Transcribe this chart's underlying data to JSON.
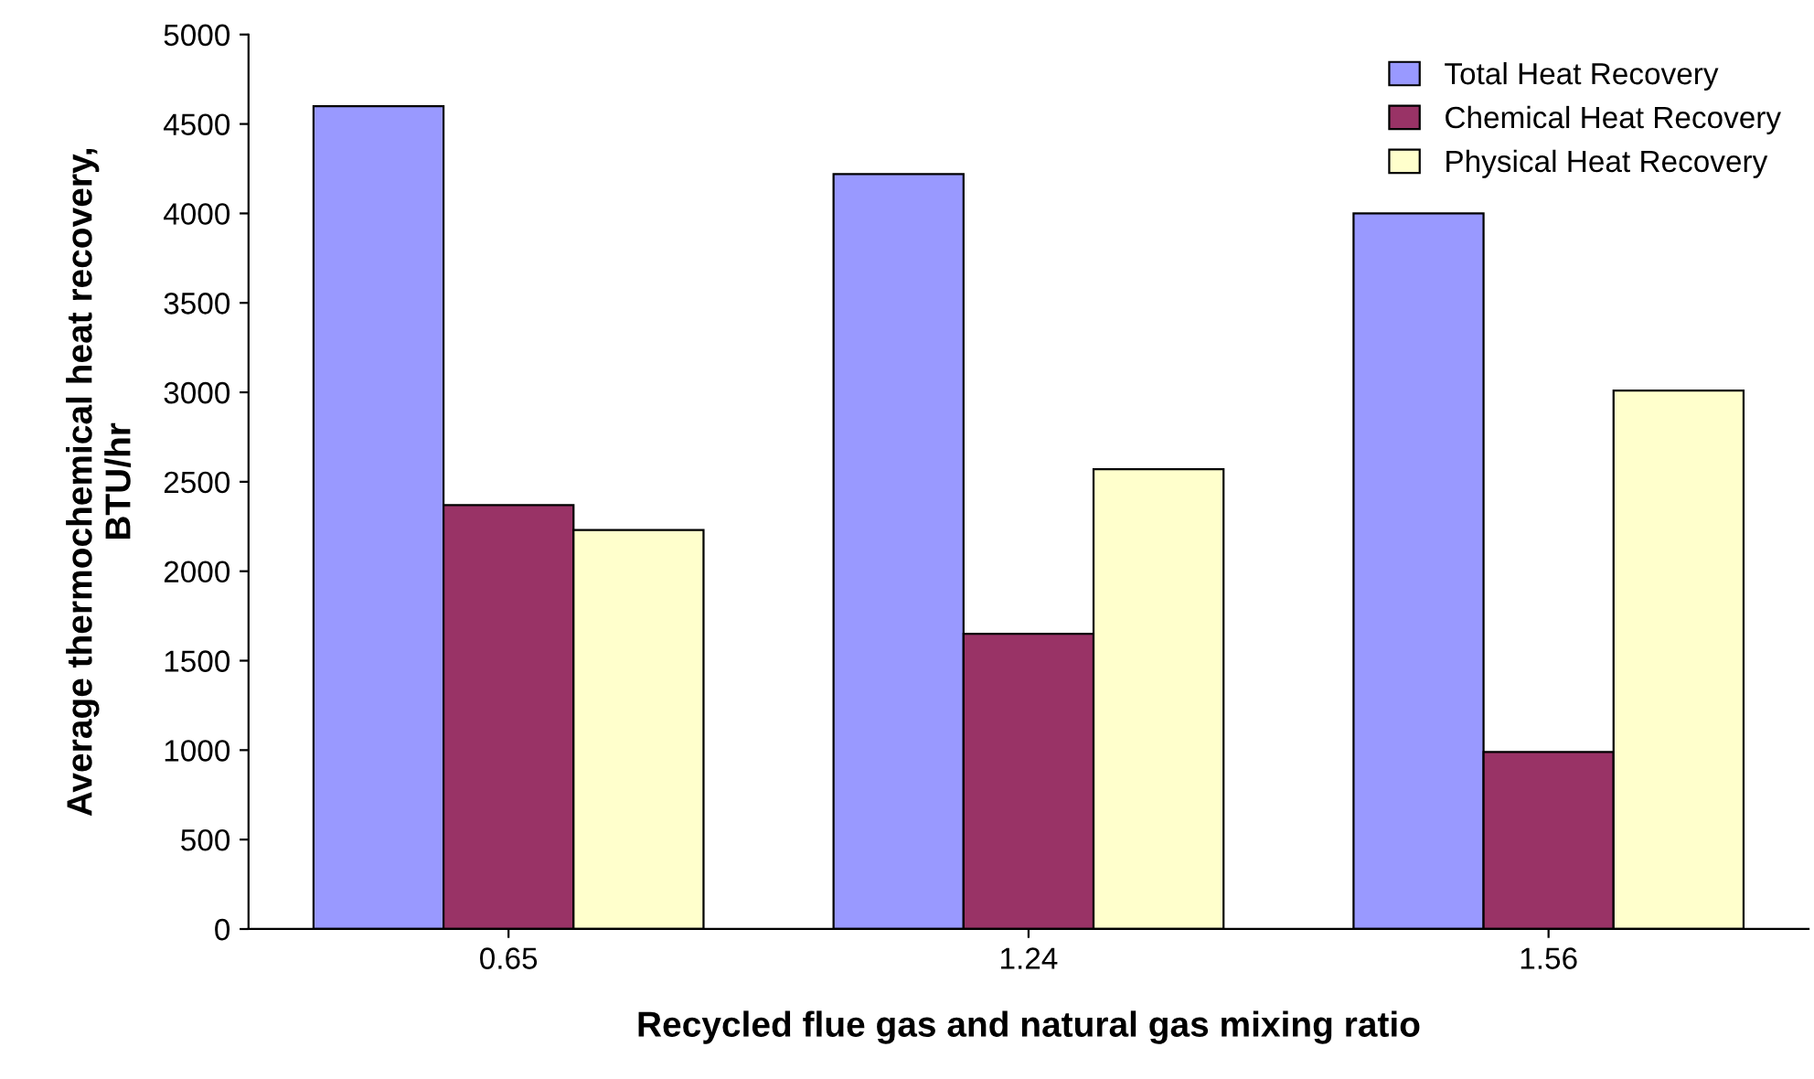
{
  "chart_data": {
    "type": "bar",
    "xlabel": "Recycled flue gas and natural gas mixing ratio",
    "ylabel": "Average thermochemical heat recovery,\nBTU/hr",
    "categories": [
      "0.65",
      "1.24",
      "1.56"
    ],
    "series": [
      {
        "name": "Total Heat Recovery",
        "color": "#9999ff",
        "values": [
          4600,
          4220,
          4000
        ]
      },
      {
        "name": "Chemical Heat Recovery",
        "color": "#993366",
        "values": [
          2370,
          1650,
          990
        ]
      },
      {
        "name": "Physical Heat Recovery",
        "color": "#ffffcc",
        "values": [
          2230,
          2570,
          3010
        ]
      }
    ],
    "ylim": [
      0,
      5000
    ],
    "yticks": [
      0,
      500,
      1000,
      1500,
      2000,
      2500,
      3000,
      3500,
      4000,
      4500,
      5000
    ],
    "grid": false,
    "legend": "top right"
  }
}
